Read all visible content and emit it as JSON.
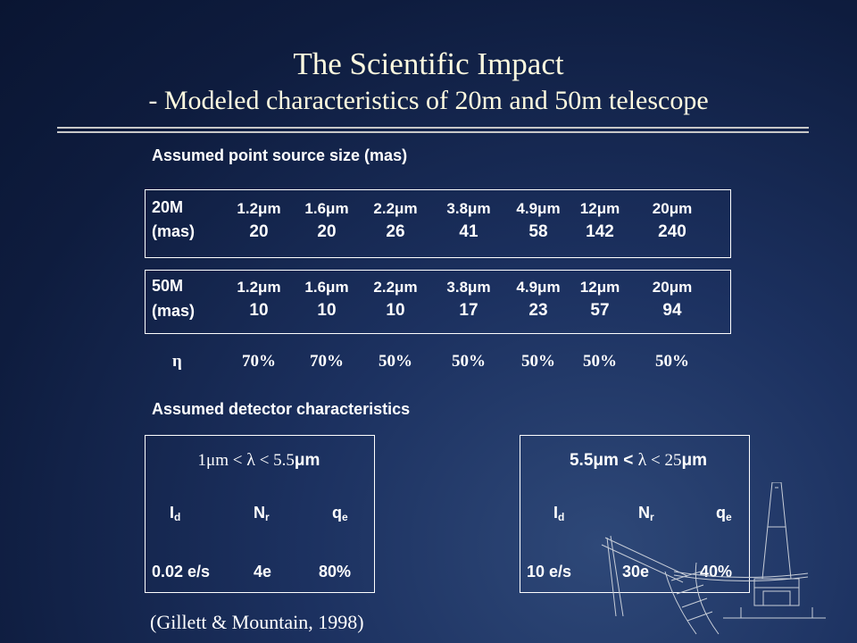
{
  "slide": {
    "title": "The Scientific Impact",
    "subtitle": "- Modeled characteristics of 20m and 50m telescope",
    "point_source_heading": "Assumed point source size (mas)",
    "detector_heading": "Assumed detector characteristics",
    "credit": "(Gillett & Mountain, 1998)"
  },
  "wavelengths": [
    "1.2μm",
    "1.6μm",
    "2.2μm",
    "3.8μm",
    "4.9μm",
    "12μm",
    "20μm"
  ],
  "telescope_20m": {
    "label": "20M",
    "unit_label": "(mas)",
    "values": [
      "20",
      "20",
      "26",
      "41",
      "58",
      "142",
      "240"
    ]
  },
  "telescope_50m": {
    "label": "50M",
    "unit_label": "(mas)",
    "values": [
      "10",
      "10",
      "10",
      "17",
      "23",
      "57",
      "94"
    ]
  },
  "efficiency": {
    "symbol": "η",
    "values": [
      "70%",
      "70%",
      "50%",
      "50%",
      "50%",
      "50%",
      "50%"
    ]
  },
  "detectors": [
    {
      "range_prefix": "1",
      "range_mid": "μm < ",
      "range_lambda": "λ",
      "range_lt": " < ",
      "range_upper": "5.5",
      "range_suffix": "μm",
      "id_main": "I",
      "id_sub": "d",
      "nr_main": "N",
      "nr_sub": "r",
      "qe_main": "q",
      "qe_sub": "e",
      "id_value": "0.02 e/s",
      "nr_value": "4e",
      "qe_value": "80%"
    },
    {
      "range_prefix": "5.5",
      "range_mid": "μm < ",
      "range_lambda": "λ",
      "range_lt": " < ",
      "range_upper": "25",
      "range_suffix": "μm",
      "id_main": "I",
      "id_sub": "d",
      "nr_main": "N",
      "nr_sub": "r",
      "qe_main": "q",
      "qe_sub": "e",
      "id_value": "10 e/s",
      "nr_value": "30e",
      "qe_value": "40%"
    }
  ]
}
